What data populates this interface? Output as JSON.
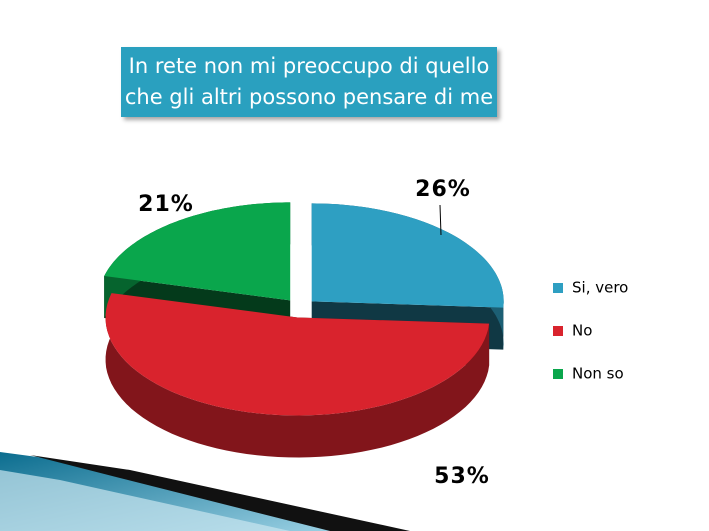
{
  "chart_data": {
    "type": "pie3d",
    "title": "In rete non mi preoccupo di quello che gli altri possono pensare di me",
    "categories": [
      "Si, vero",
      "No",
      "Non so"
    ],
    "values": [
      26,
      53,
      21
    ],
    "value_labels": [
      "26%",
      "53%",
      "21%"
    ],
    "colors": [
      "#2e9fc2",
      "#d9232d",
      "#0aa64c"
    ],
    "legend": "right"
  }
}
